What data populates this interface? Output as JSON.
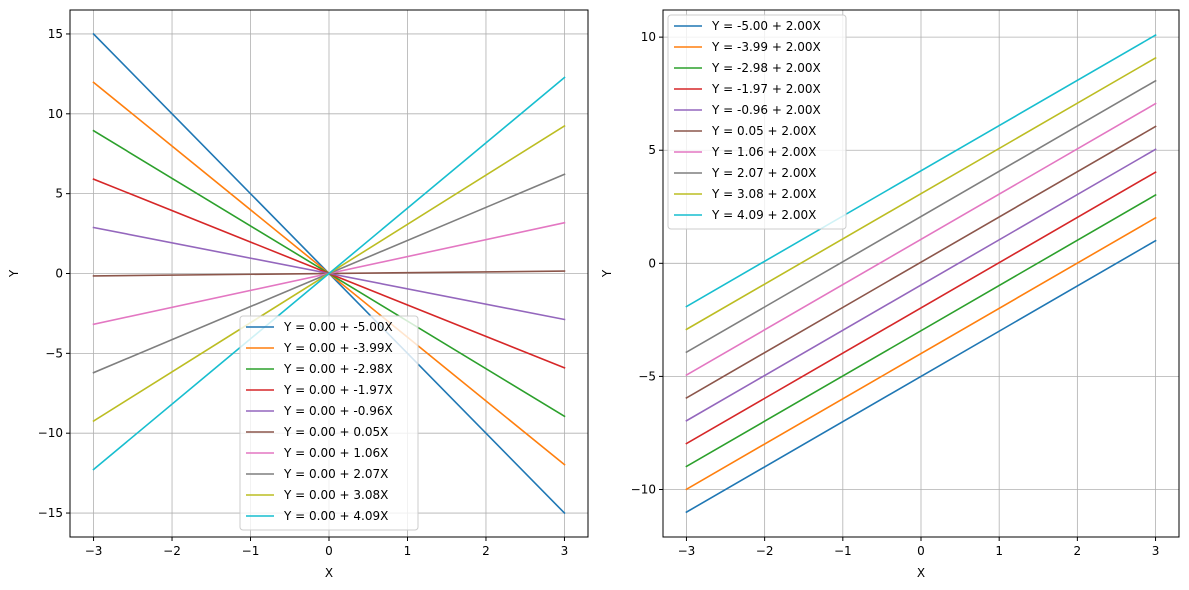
{
  "chart_data": [
    {
      "type": "line",
      "title": "",
      "xlabel": "X",
      "ylabel": "Y",
      "xlim": [
        -3.3,
        3.3
      ],
      "ylim": [
        -16.5,
        16.5
      ],
      "xticks": [
        -3,
        -2,
        -1,
        0,
        1,
        2,
        3
      ],
      "yticks": [
        -15,
        -10,
        -5,
        0,
        5,
        10,
        15
      ],
      "xtick_labels": [
        "−3",
        "−2",
        "−1",
        "0",
        "1",
        "2",
        "3"
      ],
      "ytick_labels": [
        "−15",
        "−10",
        "−5",
        "0",
        "5",
        "10",
        "15"
      ],
      "grid": true,
      "legend_position": "lower-center",
      "x": [
        -3,
        3
      ],
      "series": [
        {
          "name": "Y = 0.00 + -5.00X",
          "intercept": 0.0,
          "slope": -5.0,
          "color": "#1f77b4"
        },
        {
          "name": "Y = 0.00 + -3.99X",
          "intercept": 0.0,
          "slope": -3.99,
          "color": "#ff7f0e"
        },
        {
          "name": "Y = 0.00 + -2.98X",
          "intercept": 0.0,
          "slope": -2.98,
          "color": "#2ca02c"
        },
        {
          "name": "Y = 0.00 + -1.97X",
          "intercept": 0.0,
          "slope": -1.97,
          "color": "#d62728"
        },
        {
          "name": "Y = 0.00 + -0.96X",
          "intercept": 0.0,
          "slope": -0.96,
          "color": "#9467bd"
        },
        {
          "name": "Y = 0.00 + 0.05X",
          "intercept": 0.0,
          "slope": 0.05,
          "color": "#8c564b"
        },
        {
          "name": "Y = 0.00 + 1.06X",
          "intercept": 0.0,
          "slope": 1.06,
          "color": "#e377c2"
        },
        {
          "name": "Y = 0.00 + 2.07X",
          "intercept": 0.0,
          "slope": 2.07,
          "color": "#7f7f7f"
        },
        {
          "name": "Y = 0.00 + 3.08X",
          "intercept": 0.0,
          "slope": 3.08,
          "color": "#bcbd22"
        },
        {
          "name": "Y = 0.00 + 4.09X",
          "intercept": 0.0,
          "slope": 4.09,
          "color": "#17becf"
        }
      ]
    },
    {
      "type": "line",
      "title": "",
      "xlabel": "X",
      "ylabel": "Y",
      "xlim": [
        -3.3,
        3.3
      ],
      "ylim": [
        -12.1,
        11.2
      ],
      "xticks": [
        -3,
        -2,
        -1,
        0,
        1,
        2,
        3
      ],
      "yticks": [
        -10,
        -5,
        0,
        5,
        10
      ],
      "xtick_labels": [
        "−3",
        "−2",
        "−1",
        "0",
        "1",
        "2",
        "3"
      ],
      "ytick_labels": [
        "−10",
        "−5",
        "0",
        "5",
        "10"
      ],
      "grid": true,
      "legend_position": "top-left",
      "x": [
        -3,
        3
      ],
      "series": [
        {
          "name": "Y = -5.00 + 2.00X",
          "intercept": -5.0,
          "slope": 2.0,
          "color": "#1f77b4"
        },
        {
          "name": "Y = -3.99 + 2.00X",
          "intercept": -3.99,
          "slope": 2.0,
          "color": "#ff7f0e"
        },
        {
          "name": "Y = -2.98 + 2.00X",
          "intercept": -2.98,
          "slope": 2.0,
          "color": "#2ca02c"
        },
        {
          "name": "Y = -1.97 + 2.00X",
          "intercept": -1.97,
          "slope": 2.0,
          "color": "#d62728"
        },
        {
          "name": "Y = -0.96 + 2.00X",
          "intercept": -0.96,
          "slope": 2.0,
          "color": "#9467bd"
        },
        {
          "name": "Y = 0.05 + 2.00X",
          "intercept": 0.05,
          "slope": 2.0,
          "color": "#8c564b"
        },
        {
          "name": "Y = 1.06 + 2.00X",
          "intercept": 1.06,
          "slope": 2.0,
          "color": "#e377c2"
        },
        {
          "name": "Y = 2.07 + 2.00X",
          "intercept": 2.07,
          "slope": 2.0,
          "color": "#7f7f7f"
        },
        {
          "name": "Y = 3.08 + 2.00X",
          "intercept": 3.08,
          "slope": 2.0,
          "color": "#bcbd22"
        },
        {
          "name": "Y = 4.09 + 2.00X",
          "intercept": 4.09,
          "slope": 2.0,
          "color": "#17becf"
        }
      ]
    }
  ]
}
